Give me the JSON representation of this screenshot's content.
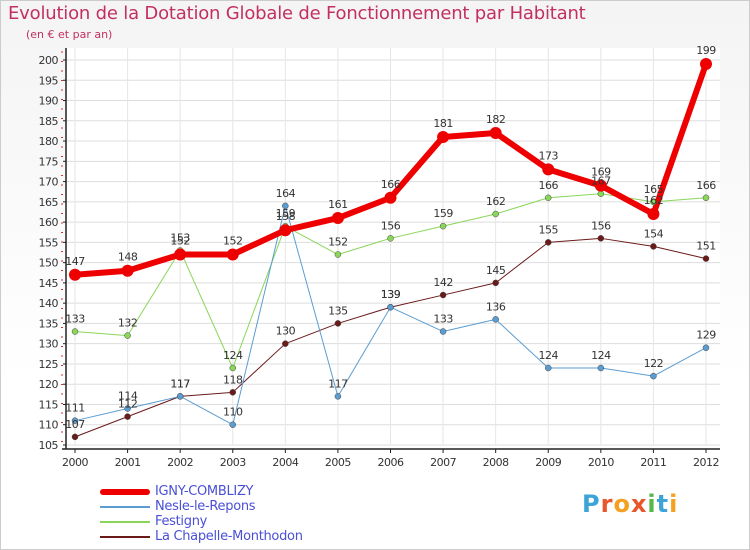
{
  "header": {
    "title": "Evolution de la Dotation Globale de Fonctionnement par Habitant",
    "subtitle": "(en € et par an)"
  },
  "logo": {
    "letters": [
      "P",
      "r",
      "o",
      "x",
      "i",
      "t",
      "i"
    ],
    "colors": [
      "#3ea3d6",
      "#e8562a",
      "#f4a021",
      "#e8562a",
      "#58b847",
      "#3ea3d6",
      "#f4a021"
    ]
  },
  "chart_data": {
    "type": "line",
    "x": [
      "2000",
      "2001",
      "2002",
      "2003",
      "2004",
      "2005",
      "2006",
      "2007",
      "2008",
      "2009",
      "2010",
      "2011",
      "2012"
    ],
    "ylim": [
      105,
      200
    ],
    "y_ticks": [
      "105",
      "110",
      "115",
      "120",
      "125",
      "130",
      "135",
      "140",
      "145",
      "150",
      "155",
      "160",
      "165",
      "170",
      "175",
      "180",
      "185",
      "190",
      "195",
      "200"
    ],
    "grid": true,
    "legend_position": "bottom-left",
    "series": [
      {
        "name": "La Chapelle-Monthodon",
        "color": "#6b1a1a",
        "width": 1,
        "values": [
          107,
          112,
          117,
          118,
          130,
          135,
          139,
          142,
          145,
          155,
          156,
          154,
          151
        ]
      },
      {
        "name": "Festigny",
        "color": "#8ad65a",
        "width": 1,
        "values": [
          133,
          132,
          153,
          124,
          159,
          152,
          156,
          159,
          162,
          166,
          167,
          165,
          166
        ]
      },
      {
        "name": "Nesle-le-Repons",
        "color": "#5b9dd1",
        "width": 1,
        "values": [
          111,
          114,
          117,
          110,
          164,
          117,
          139,
          133,
          136,
          124,
          124,
          122,
          129
        ]
      },
      {
        "name": "IGNY-COMBLIZY",
        "color": "#ee0000",
        "width": 6,
        "values": [
          147,
          148,
          152,
          152,
          158,
          161,
          166,
          181,
          182,
          173,
          169,
          162,
          199
        ]
      }
    ]
  }
}
